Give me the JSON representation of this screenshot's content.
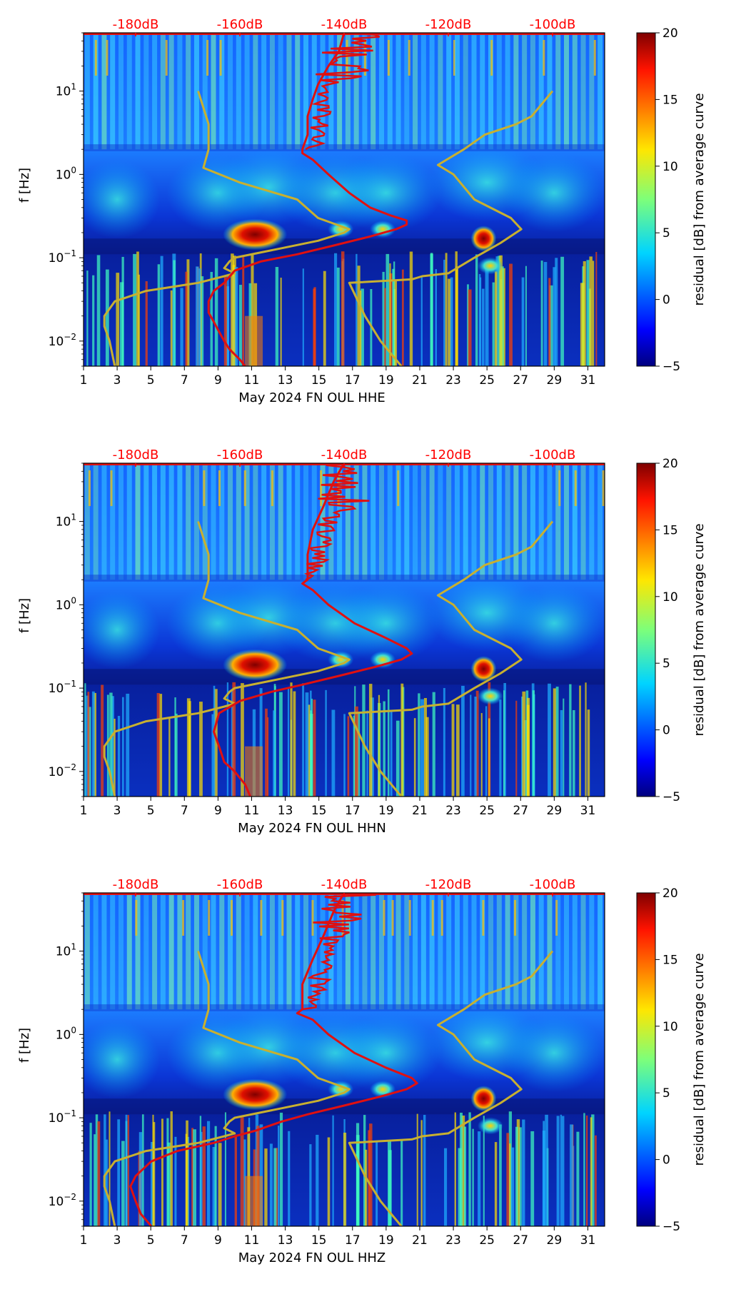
{
  "chart_data": [
    {
      "type": "heatmap",
      "xlabel": "May 2024 FN OUL  HHE",
      "ylabel": "f [Hz]",
      "x_ticks": [
        "1",
        "3",
        "5",
        "7",
        "9",
        "11",
        "13",
        "15",
        "17",
        "19",
        "21",
        "23",
        "25",
        "27",
        "29",
        "31"
      ],
      "y_ticks": [
        "10^-2",
        "10^-1",
        "10^0",
        "10^1"
      ],
      "db_scale": [
        "-180dB",
        "-160dB",
        "-140dB",
        "-120dB",
        "-100dB"
      ],
      "colorbar": {
        "label": "residual [dB] from average curve",
        "ticks": [
          "20",
          "15",
          "10",
          "5",
          "0",
          "−5"
        ],
        "range": [
          -5,
          20
        ]
      },
      "red_curve": [
        [
          0.005,
          -159
        ],
        [
          0.006,
          -160
        ],
        [
          0.008,
          -162
        ],
        [
          0.01,
          -163
        ],
        [
          0.013,
          -164
        ],
        [
          0.017,
          -165
        ],
        [
          0.022,
          -166
        ],
        [
          0.03,
          -166
        ],
        [
          0.04,
          -165
        ],
        [
          0.05,
          -163
        ],
        [
          0.07,
          -161
        ],
        [
          0.09,
          -156
        ],
        [
          0.11,
          -149
        ],
        [
          0.14,
          -142
        ],
        [
          0.18,
          -135
        ],
        [
          0.22,
          -130
        ],
        [
          0.25,
          -128
        ],
        [
          0.28,
          -128
        ],
        [
          0.32,
          -131
        ],
        [
          0.4,
          -135
        ],
        [
          0.6,
          -139
        ],
        [
          1.0,
          -143
        ],
        [
          1.5,
          -146
        ],
        [
          1.8,
          -148
        ],
        [
          2.0,
          -148
        ],
        [
          3.0,
          -147
        ],
        [
          5,
          -147
        ],
        [
          8,
          -146
        ],
        [
          12,
          -145
        ],
        [
          20,
          -143
        ],
        [
          30,
          -141
        ],
        [
          50,
          -140
        ]
      ],
      "yellow_curve_left": [
        [
          0.005,
          -184
        ],
        [
          0.01,
          -185
        ],
        [
          0.015,
          -186
        ],
        [
          0.02,
          -186
        ],
        [
          0.03,
          -184
        ],
        [
          0.04,
          -178
        ],
        [
          0.05,
          -168
        ],
        [
          0.06,
          -163
        ],
        [
          0.065,
          -161
        ],
        [
          0.075,
          -163
        ],
        [
          0.09,
          -162
        ],
        [
          0.1,
          -161
        ],
        [
          0.13,
          -152
        ],
        [
          0.16,
          -145
        ],
        [
          0.2,
          -140
        ],
        [
          0.22,
          -139
        ],
        [
          0.3,
          -145
        ],
        [
          0.5,
          -149
        ],
        [
          0.8,
          -160
        ],
        [
          1.2,
          -167
        ],
        [
          2.0,
          -166
        ],
        [
          4.0,
          -166
        ],
        [
          10,
          -168
        ]
      ],
      "yellow_curve_right": [
        [
          0.005,
          -129
        ],
        [
          0.01,
          -133
        ],
        [
          0.02,
          -136
        ],
        [
          0.05,
          -139
        ],
        [
          0.055,
          -127
        ],
        [
          0.06,
          -125
        ],
        [
          0.065,
          -120
        ],
        [
          0.1,
          -115
        ],
        [
          0.15,
          -110
        ],
        [
          0.22,
          -106
        ],
        [
          0.3,
          -108
        ],
        [
          0.5,
          -115
        ],
        [
          1.0,
          -119
        ],
        [
          1.3,
          -122
        ],
        [
          2.0,
          -117
        ],
        [
          3.0,
          -113
        ],
        [
          4.0,
          -107
        ],
        [
          5.0,
          -104
        ],
        [
          10,
          -100
        ]
      ]
    },
    {
      "type": "heatmap",
      "xlabel": "May 2024 FN OUL  HHN",
      "ylabel": "f [Hz]",
      "x_ticks": [
        "1",
        "3",
        "5",
        "7",
        "9",
        "11",
        "13",
        "15",
        "17",
        "19",
        "21",
        "23",
        "25",
        "27",
        "29",
        "31"
      ],
      "y_ticks": [
        "10^-2",
        "10^-1",
        "10^0",
        "10^1"
      ],
      "db_scale": [
        "-180dB",
        "-160dB",
        "-140dB",
        "-120dB",
        "-100dB"
      ],
      "colorbar": {
        "label": "residual [dB] from average curve",
        "ticks": [
          "20",
          "15",
          "10",
          "5",
          "0",
          "−5"
        ],
        "range": [
          -5,
          20
        ]
      },
      "red_curve": [
        [
          0.005,
          -158
        ],
        [
          0.007,
          -159
        ],
        [
          0.01,
          -161
        ],
        [
          0.013,
          -163
        ],
        [
          0.02,
          -164
        ],
        [
          0.03,
          -165
        ],
        [
          0.05,
          -164
        ],
        [
          0.07,
          -160
        ],
        [
          0.09,
          -154
        ],
        [
          0.11,
          -148
        ],
        [
          0.14,
          -141
        ],
        [
          0.18,
          -134
        ],
        [
          0.22,
          -129
        ],
        [
          0.26,
          -127
        ],
        [
          0.3,
          -128
        ],
        [
          0.4,
          -132
        ],
        [
          0.6,
          -138
        ],
        [
          1.0,
          -143
        ],
        [
          1.5,
          -146
        ],
        [
          1.8,
          -148
        ],
        [
          2.0,
          -147
        ],
        [
          4.0,
          -147
        ],
        [
          8,
          -146
        ],
        [
          15,
          -144
        ],
        [
          30,
          -142
        ],
        [
          50,
          -140
        ]
      ],
      "yellow_curve_left": [
        [
          0.005,
          -184
        ],
        [
          0.01,
          -185
        ],
        [
          0.015,
          -186
        ],
        [
          0.02,
          -186
        ],
        [
          0.03,
          -184
        ],
        [
          0.04,
          -178
        ],
        [
          0.05,
          -168
        ],
        [
          0.06,
          -163
        ],
        [
          0.065,
          -161
        ],
        [
          0.075,
          -163
        ],
        [
          0.09,
          -162
        ],
        [
          0.1,
          -161
        ],
        [
          0.13,
          -152
        ],
        [
          0.16,
          -145
        ],
        [
          0.2,
          -140
        ],
        [
          0.22,
          -139
        ],
        [
          0.3,
          -145
        ],
        [
          0.5,
          -149
        ],
        [
          0.8,
          -160
        ],
        [
          1.2,
          -167
        ],
        [
          2.0,
          -166
        ],
        [
          4.0,
          -166
        ],
        [
          10,
          -168
        ]
      ],
      "yellow_curve_right": [
        [
          0.005,
          -129
        ],
        [
          0.01,
          -133
        ],
        [
          0.02,
          -136
        ],
        [
          0.05,
          -139
        ],
        [
          0.055,
          -127
        ],
        [
          0.06,
          -125
        ],
        [
          0.065,
          -120
        ],
        [
          0.1,
          -115
        ],
        [
          0.15,
          -110
        ],
        [
          0.22,
          -106
        ],
        [
          0.3,
          -108
        ],
        [
          0.5,
          -115
        ],
        [
          1.0,
          -119
        ],
        [
          1.3,
          -122
        ],
        [
          2.0,
          -117
        ],
        [
          3.0,
          -113
        ],
        [
          4.0,
          -107
        ],
        [
          5.0,
          -104
        ],
        [
          10,
          -100
        ]
      ]
    },
    {
      "type": "heatmap",
      "xlabel": "May 2024 FN OUL  HHZ",
      "ylabel": "f [Hz]",
      "x_ticks": [
        "1",
        "3",
        "5",
        "7",
        "9",
        "11",
        "13",
        "15",
        "17",
        "19",
        "21",
        "23",
        "25",
        "27",
        "29",
        "31"
      ],
      "y_ticks": [
        "10^-2",
        "10^-1",
        "10^0",
        "10^1"
      ],
      "db_scale": [
        "-180dB",
        "-160dB",
        "-140dB",
        "-120dB",
        "-100dB"
      ],
      "colorbar": {
        "label": "residual [dB] from average curve",
        "ticks": [
          "20",
          "15",
          "10",
          "5",
          "0",
          "−5"
        ],
        "range": [
          -5,
          20
        ]
      },
      "red_curve": [
        [
          0.005,
          -177
        ],
        [
          0.007,
          -179
        ],
        [
          0.01,
          -180
        ],
        [
          0.015,
          -181
        ],
        [
          0.02,
          -180
        ],
        [
          0.03,
          -177
        ],
        [
          0.04,
          -172
        ],
        [
          0.05,
          -165
        ],
        [
          0.06,
          -161
        ],
        [
          0.07,
          -157
        ],
        [
          0.09,
          -152
        ],
        [
          0.11,
          -147
        ],
        [
          0.14,
          -140
        ],
        [
          0.18,
          -133
        ],
        [
          0.22,
          -128
        ],
        [
          0.26,
          -126
        ],
        [
          0.3,
          -127
        ],
        [
          0.4,
          -132
        ],
        [
          0.6,
          -138
        ],
        [
          1.0,
          -143
        ],
        [
          1.5,
          -146
        ],
        [
          1.8,
          -149
        ],
        [
          2.0,
          -148
        ],
        [
          4.0,
          -148
        ],
        [
          8,
          -146
        ],
        [
          15,
          -144
        ],
        [
          30,
          -142
        ],
        [
          50,
          -140
        ]
      ],
      "yellow_curve_left": [
        [
          0.005,
          -184
        ],
        [
          0.01,
          -185
        ],
        [
          0.015,
          -186
        ],
        [
          0.02,
          -186
        ],
        [
          0.03,
          -184
        ],
        [
          0.04,
          -178
        ],
        [
          0.05,
          -168
        ],
        [
          0.06,
          -163
        ],
        [
          0.065,
          -161
        ],
        [
          0.075,
          -163
        ],
        [
          0.09,
          -162
        ],
        [
          0.1,
          -161
        ],
        [
          0.13,
          -152
        ],
        [
          0.16,
          -145
        ],
        [
          0.2,
          -140
        ],
        [
          0.22,
          -139
        ],
        [
          0.3,
          -145
        ],
        [
          0.5,
          -149
        ],
        [
          0.8,
          -160
        ],
        [
          1.2,
          -167
        ],
        [
          2.0,
          -166
        ],
        [
          4.0,
          -166
        ],
        [
          10,
          -168
        ]
      ],
      "yellow_curve_right": [
        [
          0.005,
          -129
        ],
        [
          0.01,
          -133
        ],
        [
          0.02,
          -136
        ],
        [
          0.05,
          -139
        ],
        [
          0.055,
          -127
        ],
        [
          0.06,
          -125
        ],
        [
          0.065,
          -120
        ],
        [
          0.1,
          -115
        ],
        [
          0.15,
          -110
        ],
        [
          0.22,
          -106
        ],
        [
          0.3,
          -108
        ],
        [
          0.5,
          -115
        ],
        [
          1.0,
          -119
        ],
        [
          1.3,
          -122
        ],
        [
          2.0,
          -117
        ],
        [
          3.0,
          -113
        ],
        [
          4.0,
          -107
        ],
        [
          5.0,
          -104
        ],
        [
          10,
          -100
        ]
      ]
    }
  ]
}
